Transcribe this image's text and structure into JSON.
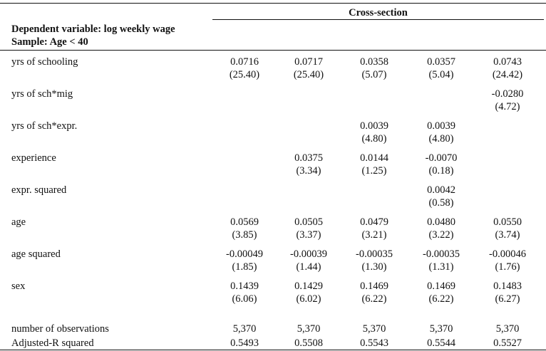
{
  "header": {
    "group_label": "Cross-section",
    "dep_var_label": "Dependent variable: log weekly wage",
    "sample_label": "Sample:  Age < 40"
  },
  "rows": [
    {
      "label": "yrs of schooling",
      "cells": [
        [
          "0.0716",
          "(25.40)"
        ],
        [
          "0.0717",
          "(25.40)"
        ],
        [
          "0.0358",
          "(5.07)"
        ],
        [
          "0.0357",
          "(5.04)"
        ],
        [
          "0.0743",
          "(24.42)"
        ]
      ]
    },
    {
      "label": "yrs of sch*mig",
      "cells": [
        [
          "",
          ""
        ],
        [
          "",
          ""
        ],
        [
          "",
          ""
        ],
        [
          "",
          ""
        ],
        [
          "-0.0280",
          "(4.72)"
        ]
      ]
    },
    {
      "label": "yrs of sch*expr.",
      "cells": [
        [
          "",
          ""
        ],
        [
          "",
          ""
        ],
        [
          "0.0039",
          "(4.80)"
        ],
        [
          "0.0039",
          "(4.80)"
        ],
        [
          "",
          ""
        ]
      ]
    },
    {
      "label": "experience",
      "cells": [
        [
          "",
          ""
        ],
        [
          "0.0375",
          "(3.34)"
        ],
        [
          "0.0144",
          "(1.25)"
        ],
        [
          "-0.0070",
          "(0.18)"
        ],
        [
          "",
          ""
        ]
      ]
    },
    {
      "label": "expr. squared",
      "cells": [
        [
          "",
          ""
        ],
        [
          "",
          ""
        ],
        [
          "",
          ""
        ],
        [
          "0.0042",
          "(0.58)"
        ],
        [
          "",
          ""
        ]
      ]
    },
    {
      "label": "age",
      "cells": [
        [
          "0.0569",
          "(3.85)"
        ],
        [
          "0.0505",
          "(3.37)"
        ],
        [
          "0.0479",
          "(3.21)"
        ],
        [
          "0.0480",
          "(3.22)"
        ],
        [
          "0.0550",
          "(3.74)"
        ]
      ]
    },
    {
      "label": "age squared",
      "cells": [
        [
          "-0.00049",
          "(1.85)"
        ],
        [
          "-0.00039",
          "(1.44)"
        ],
        [
          "-0.00035",
          "(1.30)"
        ],
        [
          "-0.00035",
          "(1.31)"
        ],
        [
          "-0.00046",
          "(1.76)"
        ]
      ]
    },
    {
      "label": "sex",
      "cells": [
        [
          "0.1439",
          "(6.06)"
        ],
        [
          "0.1429",
          "(6.02)"
        ],
        [
          "0.1469",
          "(6.22)"
        ],
        [
          "0.1469",
          "(6.22)"
        ],
        [
          "0.1483",
          "(6.27)"
        ]
      ]
    }
  ],
  "footer_rows": [
    {
      "label": "number of observations",
      "values": [
        "5,370",
        "5,370",
        "5,370",
        "5,370",
        "5,370"
      ]
    },
    {
      "label": "Adjusted-R squared",
      "values": [
        "0.5493",
        "0.5508",
        "0.5543",
        "0.5544",
        "0.5527"
      ]
    }
  ]
}
